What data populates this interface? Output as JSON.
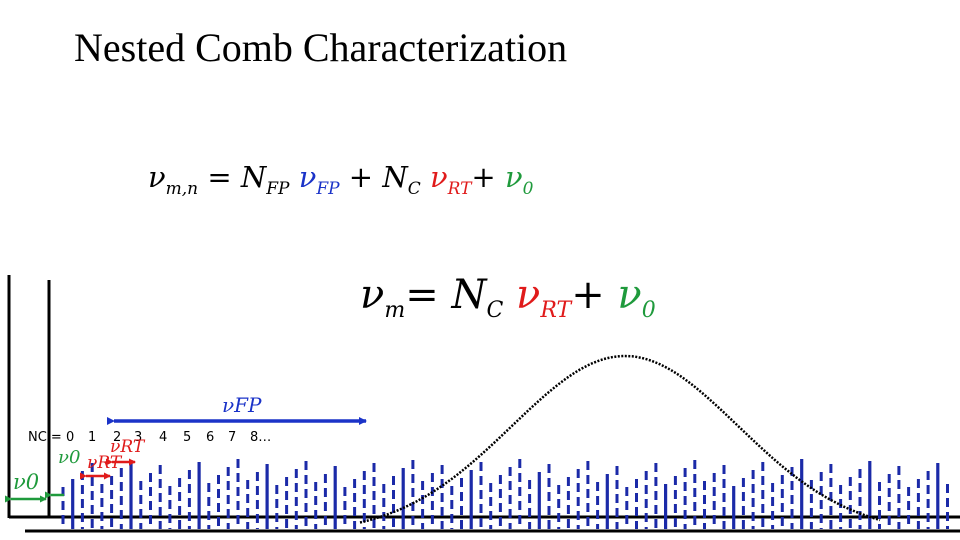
{
  "title": "Nested Comb Characterization",
  "colors": {
    "fp": "#1b33c8",
    "rt": "#e01b1b",
    "offset": "#1f9a3c",
    "line": "#000000",
    "comb": "#1b2aa8"
  },
  "equation_nested": {
    "lhs": "ν",
    "lhs_sub": "m,n",
    "equals": "=",
    "n_fp": "N",
    "n_fp_sub": "FP",
    "nu_fp": "ν",
    "nu_fp_sub": "FP",
    "plus1": "+",
    "n_c": "N",
    "n_c_sub": "C",
    "nu_rt": "ν",
    "nu_rt_sub": "RT",
    "plus2": "+",
    "nu_0": "ν",
    "nu_0_sub": "0"
  },
  "equation_comb": {
    "lhs": "ν",
    "lhs_sub": "m",
    "equals": "=",
    "n_c": "N",
    "n_c_sub": "C",
    "nu_rt": "ν",
    "nu_rt_sub": "RT",
    "plus": "+",
    "nu_0": "ν",
    "nu_0_sub": "0"
  },
  "labels": {
    "nu_fp": "νFP",
    "nu_rt": "νRT",
    "nu_0_small": "ν0",
    "nu_0_axis": "ν0",
    "nc_prefix": "NC = 0",
    "mode_indices": [
      "1",
      "2",
      "3",
      "4",
      "5",
      "6",
      "7",
      "8…"
    ]
  },
  "comb": {
    "solid_indices": [
      1,
      7,
      14,
      21,
      28,
      35,
      42,
      49,
      56,
      62,
      69,
      76,
      83,
      90
    ],
    "envelope_shape": "gaussian"
  }
}
